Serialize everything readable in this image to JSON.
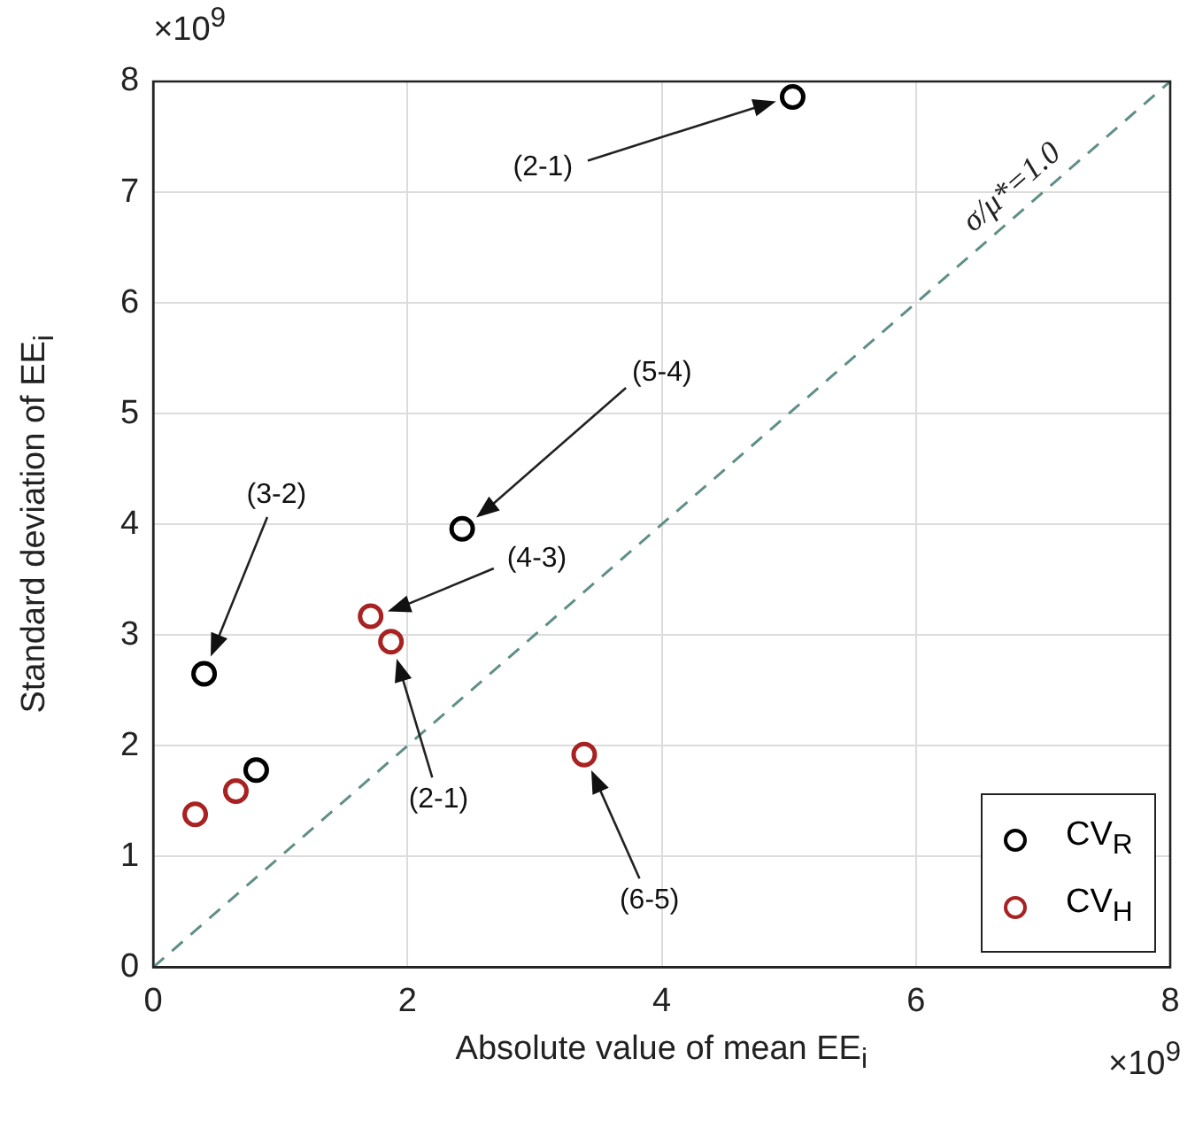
{
  "chart_data": {
    "type": "scatter",
    "xlabel": "Absolute value of mean EE$_{i}$",
    "ylabel": "Standard deviation of EE$_{i}$",
    "xlim": [
      0,
      8
    ],
    "ylim": [
      0,
      8
    ],
    "xticks": [
      0,
      2,
      4,
      6,
      8
    ],
    "yticks": [
      0,
      1,
      2,
      3,
      4,
      5,
      6,
      7,
      8
    ],
    "grid": true,
    "legend": "bottom right",
    "marker": "circle",
    "series": [
      {
        "name": "CV$_{R}$",
        "color": "#000000",
        "x": [
          5.03,
          2.43,
          0.4,
          0.81
        ],
        "values": [
          7.86,
          3.96,
          2.65,
          1.78
        ]
      },
      {
        "name": "CV$_{H}$",
        "color": "#a82222",
        "x": [
          0.33,
          0.65,
          1.71,
          1.87,
          3.39
        ],
        "values": [
          1.38,
          1.59,
          3.17,
          2.94,
          1.92
        ]
      },
      {
        "type": "line",
        "color": "#5f8f86",
        "line_style": "dashed",
        "marker": "none",
        "x": [
          0,
          8
        ],
        "values": [
          0,
          8
        ]
      }
    ],
    "annotations": [
      "×10$^{9}$",
      "×10$^{9}$",
      "σ/μ*=1.0",
      "(2-1)",
      "(5-4)",
      "(3-2)",
      "(4-3)",
      "(2-1)",
      "(6-5)"
    ]
  }
}
